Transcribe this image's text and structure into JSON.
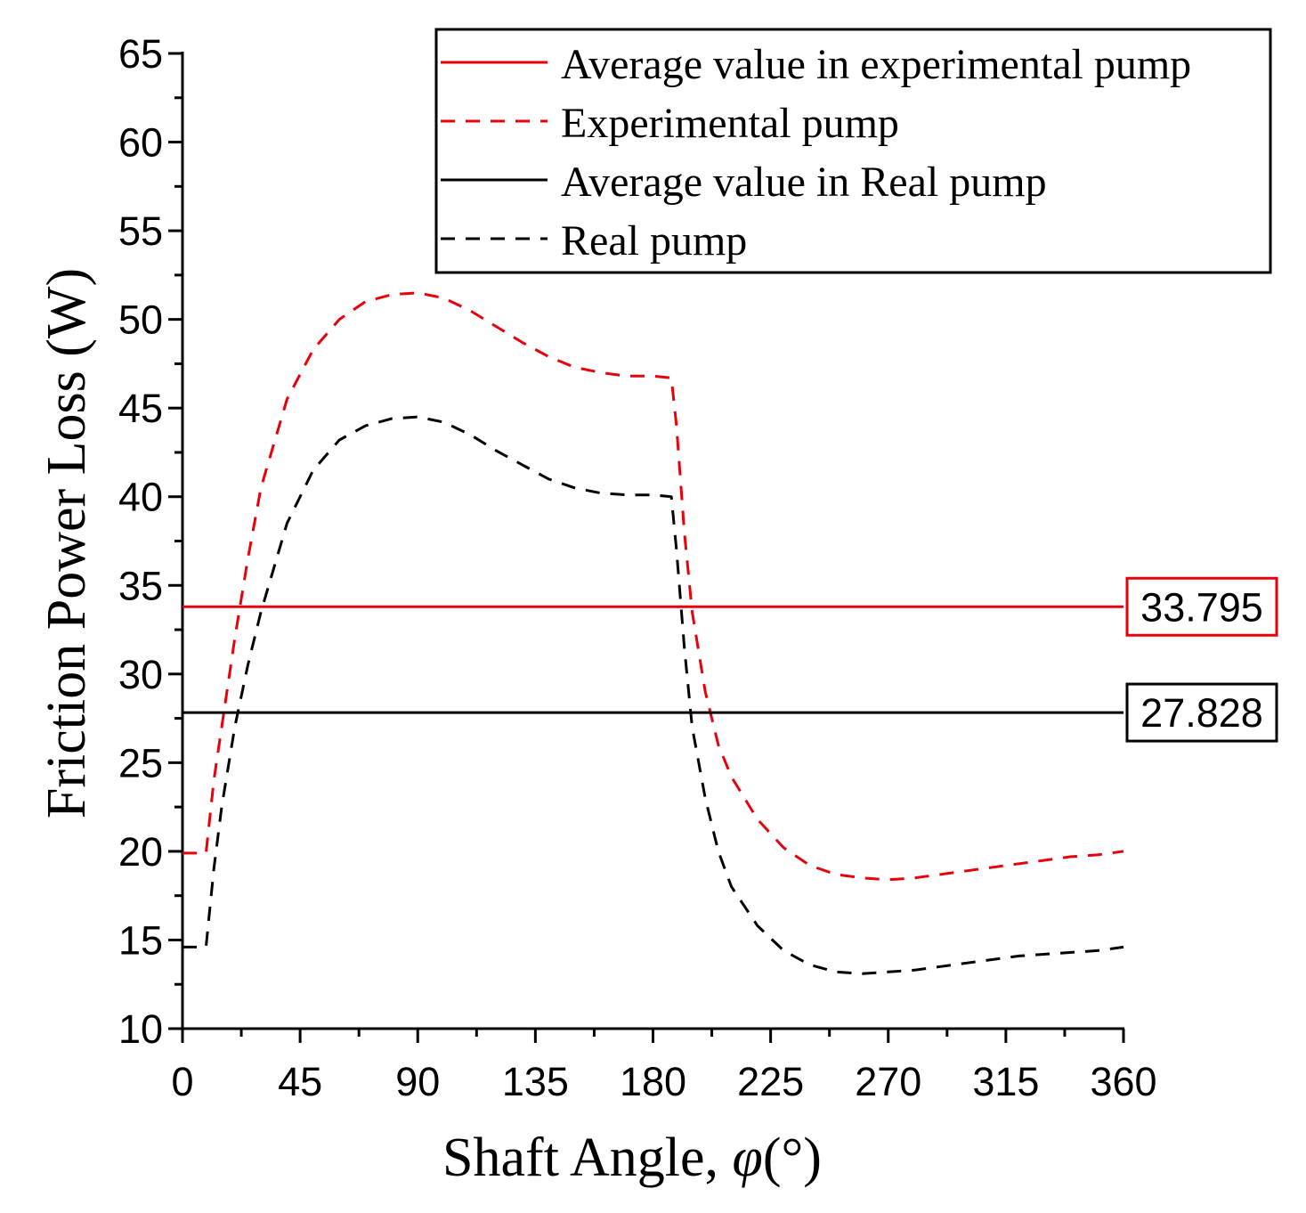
{
  "chart_data": {
    "type": "line",
    "title": "",
    "xlabel": "Shaft Angle, ",
    "xlabel_symbol": "φ",
    "xlabel_unit": "(°)",
    "ylabel": "Friction Power Loss (W)",
    "xlim": [
      0,
      360
    ],
    "ylim": [
      10,
      65
    ],
    "xticks": [
      0,
      45,
      90,
      135,
      180,
      225,
      270,
      315,
      360
    ],
    "yticks": [
      10,
      15,
      20,
      25,
      30,
      35,
      40,
      45,
      50,
      55,
      60,
      65
    ],
    "legend_position": "top-right",
    "series": [
      {
        "name": "Average value in experimental pump",
        "style": "solid",
        "color": "#e8000b",
        "x": [
          0,
          360
        ],
        "y": [
          33.795,
          33.795
        ],
        "label": "33.795"
      },
      {
        "name": "Experimental pump",
        "style": "dashed",
        "color": "#e8000b",
        "x": [
          0,
          5,
          9,
          12,
          15,
          20,
          25,
          30,
          40,
          50,
          60,
          70,
          80,
          90,
          100,
          110,
          120,
          130,
          140,
          150,
          160,
          170,
          180,
          187,
          189,
          192,
          195,
          200,
          205,
          210,
          220,
          230,
          240,
          250,
          260,
          270,
          280,
          290,
          300,
          310,
          320,
          330,
          340,
          350,
          360
        ],
        "y": [
          19.9,
          19.9,
          19.9,
          24.0,
          27.0,
          32.0,
          36.5,
          40.5,
          45.5,
          48.3,
          50.0,
          51.0,
          51.4,
          51.5,
          51.2,
          50.5,
          49.6,
          48.7,
          47.9,
          47.3,
          47.0,
          46.8,
          46.8,
          46.7,
          44.0,
          38.0,
          33.5,
          29.0,
          26.0,
          24.2,
          21.8,
          20.2,
          19.2,
          18.7,
          18.5,
          18.4,
          18.5,
          18.7,
          18.9,
          19.1,
          19.3,
          19.5,
          19.7,
          19.8,
          20.0
        ]
      },
      {
        "name": "Average value in Real pump",
        "style": "solid",
        "color": "#000000",
        "x": [
          0,
          360
        ],
        "y": [
          27.828,
          27.828
        ],
        "label": "27.828"
      },
      {
        "name": "Real pump",
        "style": "dashed",
        "color": "#000000",
        "x": [
          0,
          5,
          9,
          12,
          15,
          20,
          25,
          30,
          40,
          50,
          60,
          70,
          80,
          90,
          100,
          110,
          120,
          130,
          140,
          150,
          160,
          170,
          180,
          187,
          189,
          192,
          195,
          200,
          205,
          210,
          220,
          230,
          240,
          250,
          260,
          270,
          280,
          290,
          300,
          310,
          320,
          330,
          340,
          350,
          360
        ],
        "y": [
          14.6,
          14.6,
          14.6,
          19.0,
          22.5,
          27.0,
          30.5,
          33.5,
          38.5,
          41.5,
          43.2,
          44.0,
          44.4,
          44.5,
          44.2,
          43.5,
          42.6,
          41.8,
          41.0,
          40.5,
          40.2,
          40.1,
          40.1,
          40.0,
          37.0,
          31.5,
          27.0,
          23.0,
          20.0,
          18.0,
          15.8,
          14.4,
          13.6,
          13.2,
          13.1,
          13.2,
          13.3,
          13.5,
          13.7,
          13.9,
          14.1,
          14.2,
          14.3,
          14.4,
          14.6
        ]
      }
    ]
  }
}
